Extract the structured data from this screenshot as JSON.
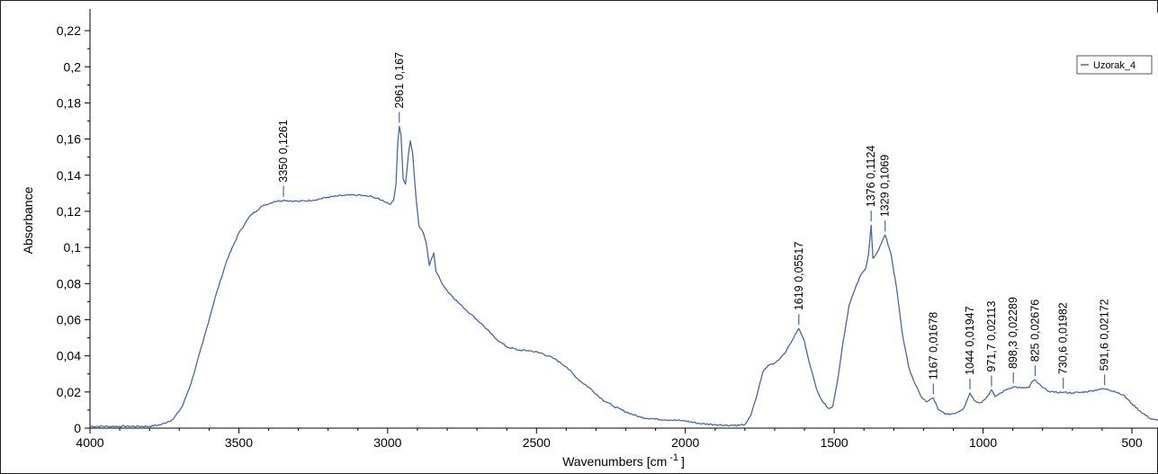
{
  "chart_data": {
    "type": "line",
    "xlabel": "Wavenumbers [cm",
    "xlabel_sup": "-1",
    "xlabel_close": "]",
    "ylabel": "Absorbance",
    "xlim": [
      4000,
      400
    ],
    "ylim": [
      0,
      0.23
    ],
    "x_reversed": true,
    "grid": false,
    "legend_position": "top-right",
    "line_color": "#4a66a8",
    "x_ticks": [
      {
        "value": 4000,
        "label": "4000"
      },
      {
        "value": 3500,
        "label": "3500"
      },
      {
        "value": 3000,
        "label": "3000"
      },
      {
        "value": 2500,
        "label": "2500"
      },
      {
        "value": 2000,
        "label": "2000"
      },
      {
        "value": 1500,
        "label": "1500"
      },
      {
        "value": 1000,
        "label": "1000"
      },
      {
        "value": 500,
        "label": "500"
      }
    ],
    "y_ticks": [
      {
        "value": 0,
        "label": "0"
      },
      {
        "value": 0.02,
        "label": "0,02"
      },
      {
        "value": 0.04,
        "label": "0,04"
      },
      {
        "value": 0.06,
        "label": "0,06"
      },
      {
        "value": 0.08,
        "label": "0,08"
      },
      {
        "value": 0.1,
        "label": "0,1"
      },
      {
        "value": 0.12,
        "label": "0,12"
      },
      {
        "value": 0.14,
        "label": "0,14"
      },
      {
        "value": 0.16,
        "label": "0,16"
      },
      {
        "value": 0.18,
        "label": "0,18"
      },
      {
        "value": 0.2,
        "label": "0,2"
      },
      {
        "value": 0.22,
        "label": "0,22"
      }
    ],
    "series": [
      {
        "name": "Uzorak_4",
        "points": [
          [
            4000,
            0.001
          ],
          [
            3900,
            0.001
          ],
          [
            3800,
            0.001
          ],
          [
            3760,
            0.002
          ],
          [
            3720,
            0.005
          ],
          [
            3690,
            0.012
          ],
          [
            3660,
            0.025
          ],
          [
            3620,
            0.048
          ],
          [
            3580,
            0.072
          ],
          [
            3540,
            0.093
          ],
          [
            3500,
            0.108
          ],
          [
            3460,
            0.118
          ],
          [
            3420,
            0.123
          ],
          [
            3380,
            0.1255
          ],
          [
            3350,
            0.1261
          ],
          [
            3300,
            0.1255
          ],
          [
            3250,
            0.1262
          ],
          [
            3200,
            0.1278
          ],
          [
            3150,
            0.1288
          ],
          [
            3100,
            0.129
          ],
          [
            3050,
            0.128
          ],
          [
            3020,
            0.1262
          ],
          [
            2990,
            0.124
          ],
          [
            2980,
            0.126
          ],
          [
            2972,
            0.135
          ],
          [
            2966,
            0.158
          ],
          [
            2961,
            0.167
          ],
          [
            2955,
            0.162
          ],
          [
            2948,
            0.138
          ],
          [
            2940,
            0.135
          ],
          [
            2930,
            0.152
          ],
          [
            2924,
            0.159
          ],
          [
            2916,
            0.152
          ],
          [
            2905,
            0.128
          ],
          [
            2895,
            0.112
          ],
          [
            2880,
            0.108
          ],
          [
            2870,
            0.102
          ],
          [
            2860,
            0.09
          ],
          [
            2852,
            0.094
          ],
          [
            2845,
            0.097
          ],
          [
            2838,
            0.087
          ],
          [
            2820,
            0.081
          ],
          [
            2800,
            0.076
          ],
          [
            2760,
            0.069
          ],
          [
            2720,
            0.063
          ],
          [
            2680,
            0.057
          ],
          [
            2640,
            0.05
          ],
          [
            2600,
            0.045
          ],
          [
            2560,
            0.0432
          ],
          [
            2520,
            0.0428
          ],
          [
            2480,
            0.0413
          ],
          [
            2440,
            0.0384
          ],
          [
            2400,
            0.034
          ],
          [
            2360,
            0.027
          ],
          [
            2320,
            0.022
          ],
          [
            2280,
            0.016
          ],
          [
            2240,
            0.012
          ],
          [
            2200,
            0.009
          ],
          [
            2150,
            0.006
          ],
          [
            2100,
            0.005
          ],
          [
            2050,
            0.0045
          ],
          [
            2000,
            0.004
          ],
          [
            1950,
            0.0025
          ],
          [
            1900,
            0.002
          ],
          [
            1850,
            0.0015
          ],
          [
            1820,
            0.0015
          ],
          [
            1800,
            0.002
          ],
          [
            1780,
            0.007
          ],
          [
            1760,
            0.018
          ],
          [
            1740,
            0.031
          ],
          [
            1720,
            0.035
          ],
          [
            1700,
            0.036
          ],
          [
            1680,
            0.039
          ],
          [
            1660,
            0.043
          ],
          [
            1640,
            0.049
          ],
          [
            1619,
            0.05517
          ],
          [
            1600,
            0.048
          ],
          [
            1580,
            0.034
          ],
          [
            1560,
            0.022
          ],
          [
            1540,
            0.015
          ],
          [
            1520,
            0.011
          ],
          [
            1505,
            0.012
          ],
          [
            1490,
            0.025
          ],
          [
            1470,
            0.048
          ],
          [
            1450,
            0.068
          ],
          [
            1430,
            0.077
          ],
          [
            1410,
            0.085
          ],
          [
            1395,
            0.088
          ],
          [
            1385,
            0.096
          ],
          [
            1376,
            0.1124
          ],
          [
            1370,
            0.094
          ],
          [
            1360,
            0.096
          ],
          [
            1350,
            0.099
          ],
          [
            1329,
            0.1069
          ],
          [
            1310,
            0.097
          ],
          [
            1290,
            0.077
          ],
          [
            1270,
            0.051
          ],
          [
            1250,
            0.034
          ],
          [
            1230,
            0.025
          ],
          [
            1210,
            0.018
          ],
          [
            1190,
            0.0145
          ],
          [
            1180,
            0.0155
          ],
          [
            1167,
            0.01678
          ],
          [
            1150,
            0.01
          ],
          [
            1120,
            0.0075
          ],
          [
            1090,
            0.0085
          ],
          [
            1065,
            0.011
          ],
          [
            1044,
            0.01947
          ],
          [
            1030,
            0.0155
          ],
          [
            1010,
            0.014
          ],
          [
            990,
            0.0165
          ],
          [
            971.7,
            0.02113
          ],
          [
            960,
            0.0175
          ],
          [
            940,
            0.0195
          ],
          [
            920,
            0.0215
          ],
          [
            898.3,
            0.02289
          ],
          [
            870,
            0.0222
          ],
          [
            845,
            0.0225
          ],
          [
            835,
            0.0258
          ],
          [
            825,
            0.02676
          ],
          [
            815,
            0.0248
          ],
          [
            800,
            0.0225
          ],
          [
            780,
            0.0205
          ],
          [
            760,
            0.0198
          ],
          [
            730.6,
            0.01982
          ],
          [
            700,
            0.0195
          ],
          [
            670,
            0.0198
          ],
          [
            640,
            0.0205
          ],
          [
            610,
            0.0215
          ],
          [
            591.6,
            0.02172
          ],
          [
            560,
            0.0205
          ],
          [
            530,
            0.0185
          ],
          [
            500,
            0.0135
          ],
          [
            470,
            0.009
          ],
          [
            440,
            0.0055
          ],
          [
            410,
            0.004
          ],
          [
            400,
            0.0035
          ]
        ]
      }
    ],
    "annotations": [
      {
        "x": 3350,
        "y": 0.1261,
        "label": "3350  0,1261"
      },
      {
        "x": 2961,
        "y": 0.167,
        "label": "2961  0,167"
      },
      {
        "x": 1619,
        "y": 0.05517,
        "label": "1619  0,05517"
      },
      {
        "x": 1376,
        "y": 0.1124,
        "label": "1376  0,1124"
      },
      {
        "x": 1329,
        "y": 0.1069,
        "label": "1329  0,1069"
      },
      {
        "x": 1167,
        "y": 0.01678,
        "label": "1167  0,01678"
      },
      {
        "x": 1044,
        "y": 0.01947,
        "label": "1044  0,01947"
      },
      {
        "x": 971.7,
        "y": 0.02113,
        "label": "971,7  0,02113"
      },
      {
        "x": 898.3,
        "y": 0.02289,
        "label": "898,3  0,02289"
      },
      {
        "x": 825,
        "y": 0.02676,
        "label": "825  0,02676"
      },
      {
        "x": 730.6,
        "y": 0.01982,
        "label": "730,6  0,01982"
      },
      {
        "x": 591.6,
        "y": 0.02172,
        "label": "591,6  0,02172"
      }
    ]
  }
}
